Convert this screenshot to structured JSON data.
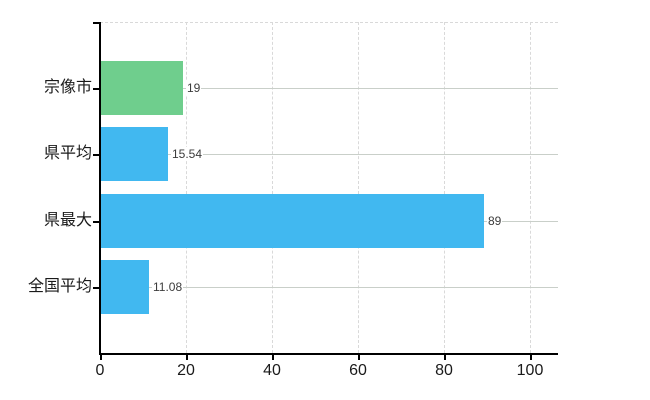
{
  "chart_data": {
    "type": "bar",
    "orientation": "horizontal",
    "title": "",
    "xlabel": "",
    "ylabel": "",
    "categories": [
      "宗像市",
      "県平均",
      "県最大",
      "全国平均"
    ],
    "values": [
      19,
      15.54,
      89,
      11.08
    ],
    "value_labels": [
      "19",
      "15.54",
      "89",
      "11.08"
    ],
    "bar_colors": [
      "#6FCE8D",
      "#41B8F0",
      "#41B8F0",
      "#41B8F0"
    ],
    "xlim": [
      0,
      100
    ],
    "x_ticks": [
      0,
      20,
      40,
      60,
      80,
      100
    ],
    "grid": true,
    "legend": false,
    "background_color": "#FFFFFF",
    "axis_color": "#000000",
    "grid_color": "#D9D9D9",
    "row_line_color": "#C9CFC9",
    "text_color": "#1A1A1A",
    "value_text_color": "#3C3C3C"
  }
}
